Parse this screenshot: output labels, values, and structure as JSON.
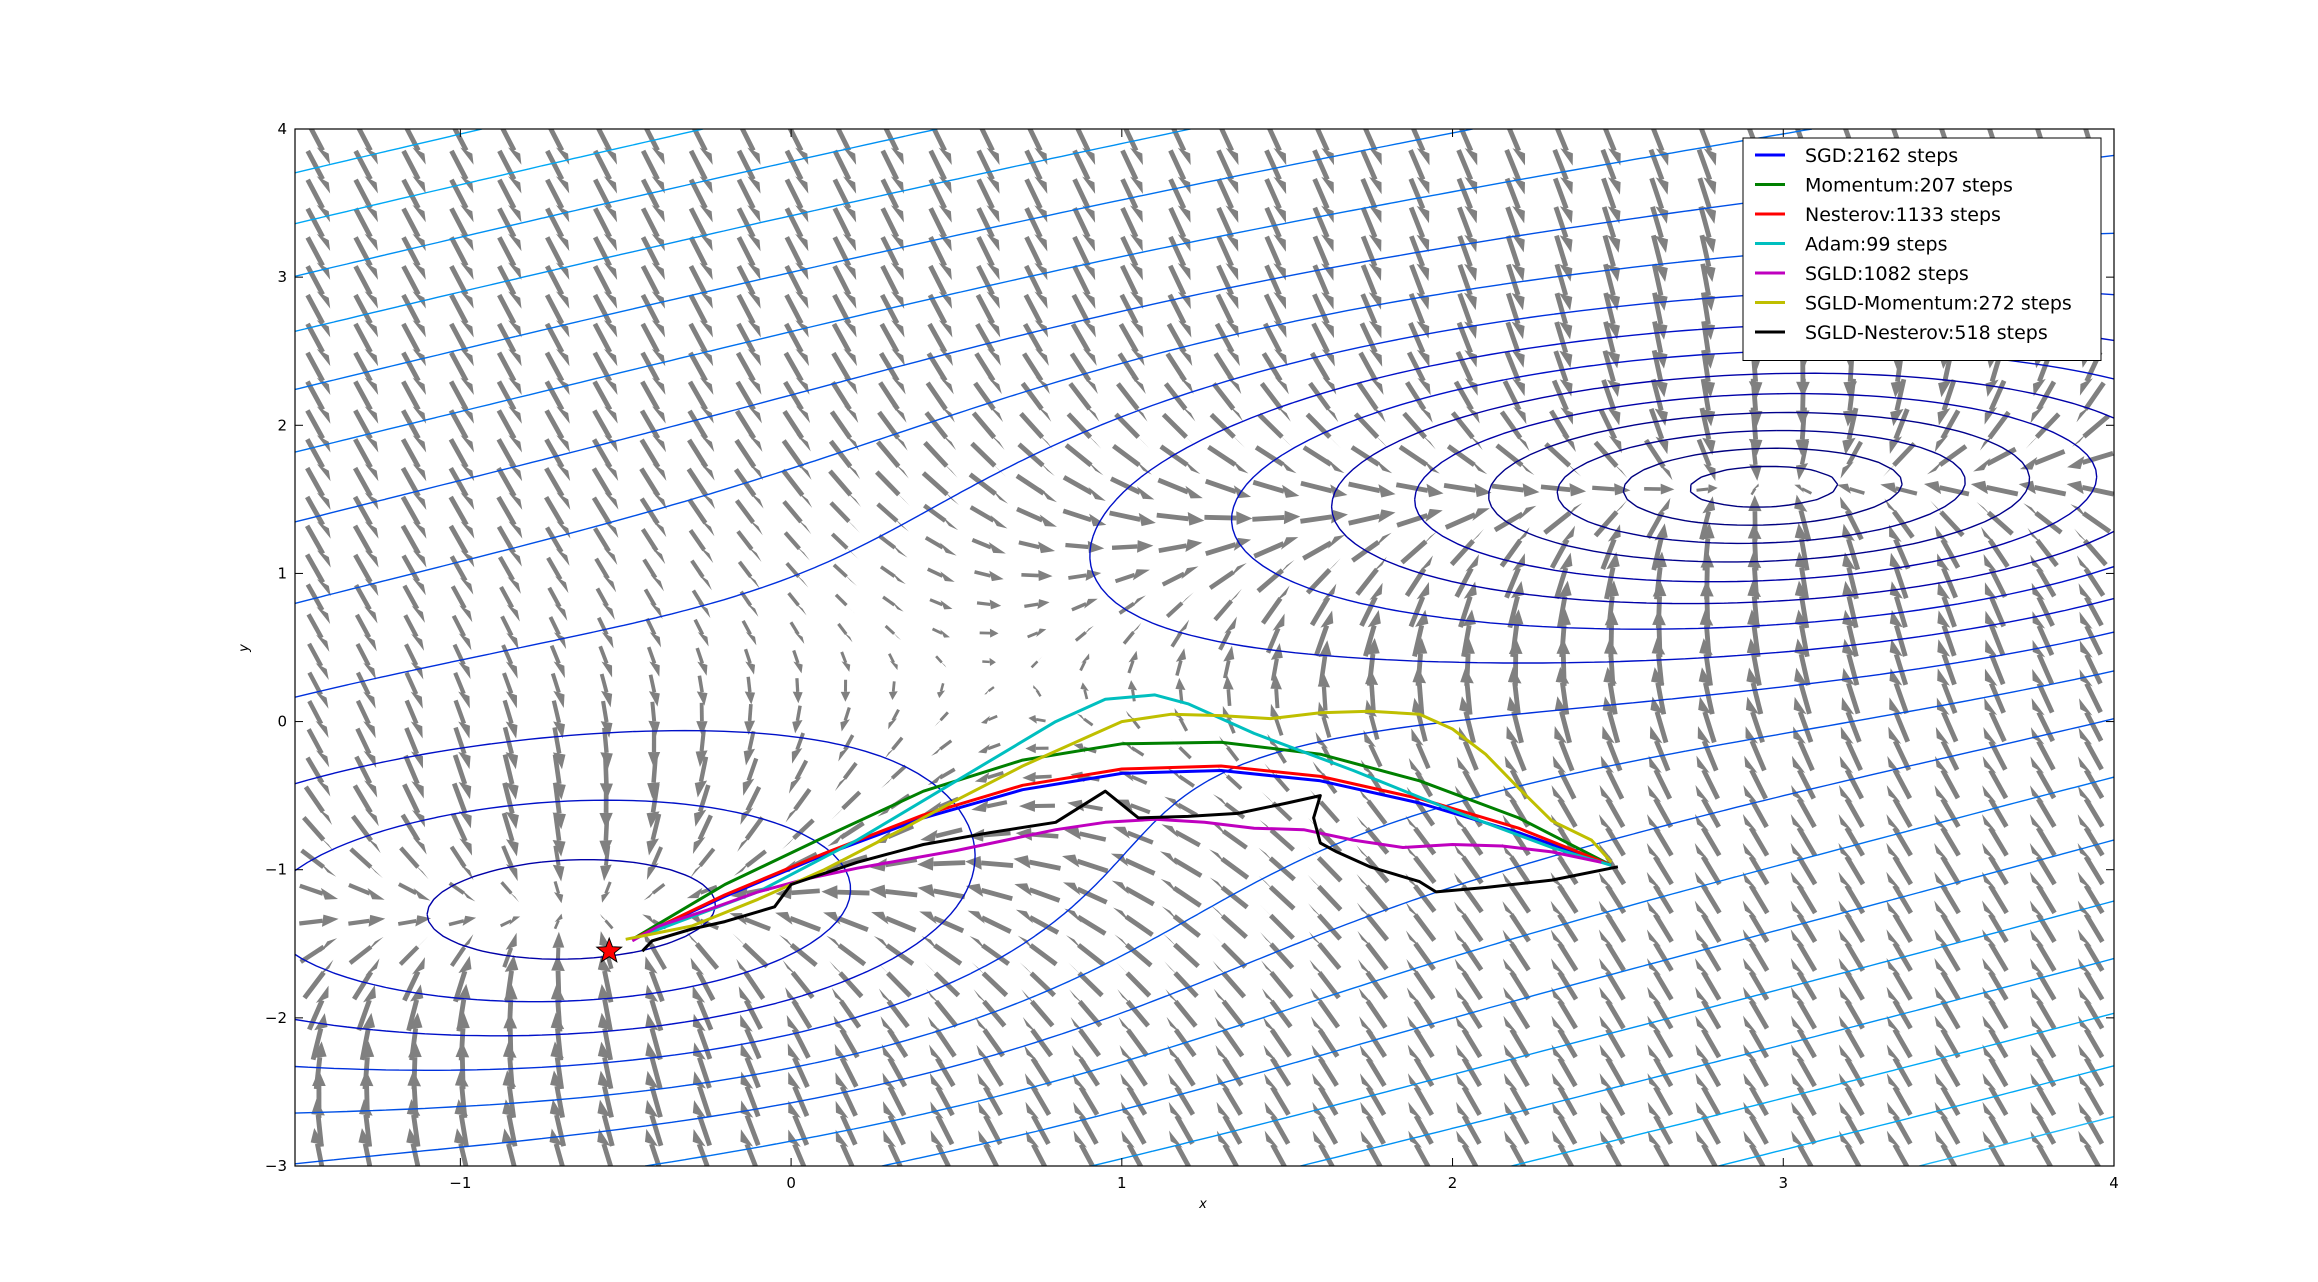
{
  "chart_data": {
    "type": "line",
    "title": "",
    "xlabel": "x",
    "ylabel": "y",
    "xlim": [
      -1.5,
      4
    ],
    "ylim": [
      -3,
      4
    ],
    "xticks": [
      -1,
      0,
      1,
      2,
      3,
      4
    ],
    "yticks": [
      -3,
      -2,
      -1,
      0,
      1,
      2,
      3,
      4
    ],
    "xtick_labels": [
      "−1",
      "0",
      "1",
      "2",
      "3",
      "4"
    ],
    "ytick_labels": [
      "−3",
      "−2",
      "−1",
      "0",
      "1",
      "2",
      "3",
      "4"
    ],
    "grid": false,
    "legend_position": "top-right",
    "background": {
      "quiver": "gray gradient-field arrows",
      "contours": "blue contour lines of the loss surface",
      "quiver_color": "#808080"
    },
    "start_marker": {
      "x": -0.55,
      "y": -1.55,
      "shape": "star",
      "color": "#ff0000"
    },
    "series": [
      {
        "name": "SGD:2162 steps",
        "color": "#0000ff",
        "x": [
          2.48,
          2.2,
          1.9,
          1.6,
          1.3,
          1.0,
          0.7,
          0.4,
          0.1,
          -0.2,
          -0.48
        ],
        "y": [
          -0.97,
          -0.75,
          -0.55,
          -0.4,
          -0.33,
          -0.35,
          -0.46,
          -0.65,
          -0.9,
          -1.18,
          -1.47
        ]
      },
      {
        "name": "Momentum:207 steps",
        "color": "#008000",
        "x": [
          2.48,
          2.2,
          1.9,
          1.6,
          1.3,
          1.0,
          0.7,
          0.4,
          0.1,
          -0.2,
          -0.48
        ],
        "y": [
          -0.97,
          -0.65,
          -0.4,
          -0.22,
          -0.14,
          -0.15,
          -0.26,
          -0.47,
          -0.78,
          -1.1,
          -1.47
        ]
      },
      {
        "name": "Nesterov:1133 steps",
        "color": "#ff0000",
        "x": [
          2.48,
          2.2,
          1.9,
          1.6,
          1.3,
          1.0,
          0.7,
          0.4,
          0.1,
          -0.2,
          -0.48
        ],
        "y": [
          -0.97,
          -0.72,
          -0.52,
          -0.37,
          -0.3,
          -0.32,
          -0.43,
          -0.63,
          -0.89,
          -1.17,
          -1.47
        ]
      },
      {
        "name": "Adam:99 steps",
        "color": "#00bfbf",
        "x": [
          2.48,
          2.3,
          2.0,
          1.7,
          1.4,
          1.2,
          1.1,
          0.95,
          0.8,
          0.5,
          0.2,
          -0.1,
          -0.48
        ],
        "y": [
          -0.97,
          -0.85,
          -0.6,
          -0.33,
          -0.08,
          0.12,
          0.18,
          0.15,
          0.0,
          -0.4,
          -0.8,
          -1.15,
          -1.47
        ]
      },
      {
        "name": "SGLD:1082 steps",
        "color": "#bf00bf",
        "x": [
          2.45,
          2.3,
          2.15,
          2.0,
          1.85,
          1.7,
          1.55,
          1.4,
          1.25,
          1.1,
          0.95,
          0.8,
          0.65,
          0.5,
          0.35,
          0.2,
          0.05,
          -0.1,
          -0.25,
          -0.4,
          -0.48
        ],
        "y": [
          -0.95,
          -0.88,
          -0.84,
          -0.83,
          -0.85,
          -0.8,
          -0.73,
          -0.72,
          -0.68,
          -0.66,
          -0.68,
          -0.73,
          -0.8,
          -0.87,
          -0.93,
          -0.99,
          -1.06,
          -1.15,
          -1.27,
          -1.38,
          -1.48
        ]
      },
      {
        "name": "SGLD-Momentum:272 steps",
        "color": "#bfbf00",
        "x": [
          2.48,
          2.42,
          2.3,
          2.2,
          2.1,
          2.0,
          1.9,
          1.75,
          1.6,
          1.45,
          1.3,
          1.15,
          1.0,
          0.9,
          0.7,
          0.5,
          0.3,
          0.1,
          -0.1,
          -0.3,
          -0.5
        ],
        "y": [
          -0.95,
          -0.8,
          -0.67,
          -0.45,
          -0.22,
          -0.05,
          0.05,
          0.07,
          0.06,
          0.02,
          0.04,
          0.05,
          0.0,
          -0.1,
          -0.3,
          -0.53,
          -0.77,
          -1.0,
          -1.2,
          -1.38,
          -1.47
        ]
      },
      {
        "name": "SGLD-Nesterov:518 steps",
        "color": "#000000",
        "x": [
          2.5,
          2.3,
          2.1,
          1.95,
          1.9,
          1.75,
          1.65,
          1.6,
          1.58,
          1.6,
          1.5,
          1.35,
          1.2,
          1.05,
          0.95,
          0.8,
          0.6,
          0.4,
          0.2,
          0.0,
          -0.05,
          -0.2,
          -0.3,
          -0.42,
          -0.45
        ],
        "y": [
          -0.98,
          -1.07,
          -1.12,
          -1.15,
          -1.08,
          -0.98,
          -0.88,
          -0.82,
          -0.65,
          -0.5,
          -0.55,
          -0.62,
          -0.64,
          -0.65,
          -0.47,
          -0.68,
          -0.75,
          -0.83,
          -0.95,
          -1.1,
          -1.25,
          -1.35,
          -1.4,
          -1.48,
          -1.55
        ]
      }
    ]
  }
}
